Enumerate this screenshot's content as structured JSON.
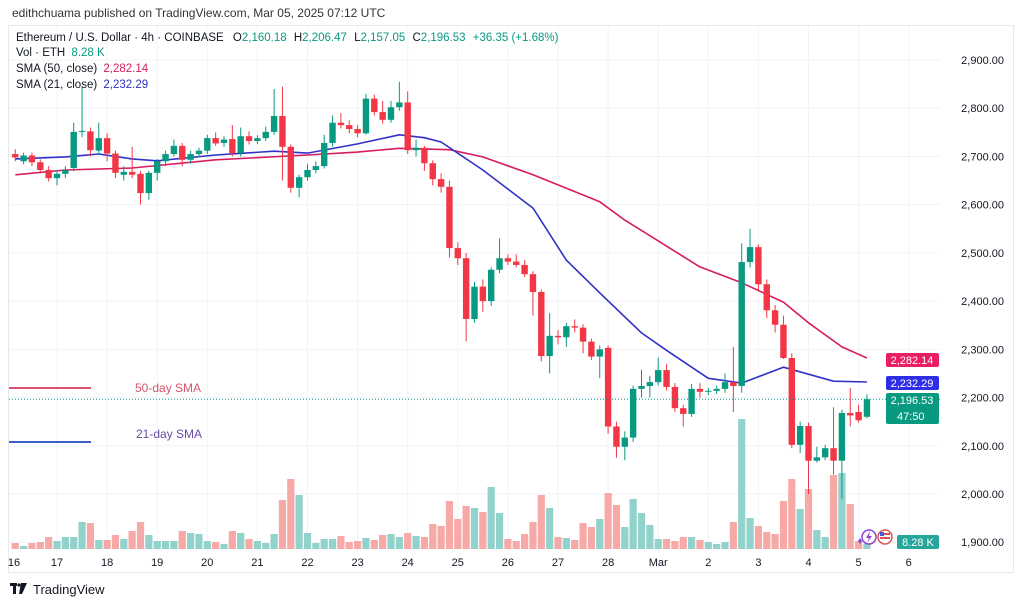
{
  "header": {
    "published": "edithchuama published on TradingView.com, Mar 05, 2025 07:12 UTC"
  },
  "legend": {
    "symbol": "Ethereum / U.S. Dollar · 4h · COINBASE",
    "open_label": "O",
    "open": "2,160.18",
    "high_label": "H",
    "high": "2,206.47",
    "low_label": "L",
    "low": "2,157.05",
    "close_label": "C",
    "close": "2,196.53",
    "change": "+36.35 (+1.68%)",
    "vol_label": "Vol · ETH",
    "vol": "8.28 K",
    "sma50_label": "SMA (50, close)",
    "sma50": "2,282.14",
    "sma21_label": "SMA (21, close)",
    "sma21": "2,232.29"
  },
  "annotations": {
    "sma50_text": "50-day SMA",
    "sma21_text": "21-day SMA"
  },
  "badges": {
    "sma50": "2,282.14",
    "sma21": "2,232.29",
    "price": "2,196.53",
    "countdown": "47:50",
    "volume": "8.28 K"
  },
  "footer": {
    "brand": "TradingView",
    "brand_mark": "TV"
  },
  "colors": {
    "up": "#089981",
    "down": "#f23645",
    "up_volume": "#92d2cc",
    "down_volume": "#f7a9a7",
    "sma50": "#d81b60",
    "sma21": "#3131c9",
    "annotation50": "#d9536f",
    "annotation21": "#6a4ca3",
    "grid": "#f0f3fa"
  },
  "icons": [
    "lightning-icon",
    "us-flag-icon"
  ],
  "chart_data": {
    "type": "candlestick",
    "symbol": "ETH/USD",
    "interval": "4h",
    "ylim": [
      1900,
      2950
    ],
    "yticks": [
      "1,900.00",
      "2,000.00",
      "2,100.00",
      "2,200.00",
      "2,300.00",
      "2,400.00",
      "2,500.00",
      "2,600.00",
      "2,700.00",
      "2,800.00",
      "2,900.00"
    ],
    "ytick_values": [
      1900,
      2000,
      2100,
      2200,
      2300,
      2400,
      2500,
      2600,
      2700,
      2800,
      2900
    ],
    "xticks": [
      {
        "label": "16",
        "t": "2025-02-16T00:00"
      },
      {
        "label": "17",
        "t": "2025-02-17T00:00"
      },
      {
        "label": "18",
        "t": "2025-02-18T00:00"
      },
      {
        "label": "19",
        "t": "2025-02-19T00:00"
      },
      {
        "label": "20",
        "t": "2025-02-20T00:00"
      },
      {
        "label": "21",
        "t": "2025-02-21T00:00"
      },
      {
        "label": "22",
        "t": "2025-02-22T00:00"
      },
      {
        "label": "23",
        "t": "2025-02-23T00:00"
      },
      {
        "label": "24",
        "t": "2025-02-24T00:00"
      },
      {
        "label": "25",
        "t": "2025-02-25T00:00"
      },
      {
        "label": "26",
        "t": "2025-02-26T00:00"
      },
      {
        "label": "27",
        "t": "2025-02-27T00:00"
      },
      {
        "label": "28",
        "t": "2025-02-28T00:00"
      },
      {
        "label": "Mar",
        "t": "2025-03-01T00:00"
      },
      {
        "label": "2",
        "t": "2025-03-02T00:00"
      },
      {
        "label": "3",
        "t": "2025-03-03T00:00"
      },
      {
        "label": "4",
        "t": "2025-03-04T00:00"
      },
      {
        "label": "5",
        "t": "2025-03-05T00:00"
      },
      {
        "label": "6",
        "t": "2025-03-06T00:00"
      }
    ],
    "grid": true,
    "volume_unit": "K ETH",
    "columns": [
      "t",
      "open",
      "high",
      "low",
      "close",
      "volume"
    ],
    "candles": [
      [
        "2025-02-16T04:00",
        2705,
        2715,
        2690,
        2698,
        9
      ],
      [
        "2025-02-16T08:00",
        2690,
        2708,
        2684,
        2702,
        4.5
      ],
      [
        "2025-02-16T12:00",
        2702,
        2708,
        2680,
        2688,
        9
      ],
      [
        "2025-02-16T16:00",
        2688,
        2694,
        2665,
        2672,
        10.5
      ],
      [
        "2025-02-16T20:00",
        2672,
        2680,
        2648,
        2655,
        18
      ],
      [
        "2025-02-17T00:00",
        2655,
        2672,
        2640,
        2664,
        12
      ],
      [
        "2025-02-17T04:00",
        2664,
        2680,
        2655,
        2672,
        18
      ],
      [
        "2025-02-17T08:00",
        2676,
        2770,
        2670,
        2751,
        18
      ],
      [
        "2025-02-17T12:00",
        2751,
        2845,
        2740,
        2753,
        40.5
      ],
      [
        "2025-02-17T16:00",
        2752,
        2760,
        2700,
        2713,
        39
      ],
      [
        "2025-02-17T20:00",
        2712,
        2770,
        2705,
        2738,
        13.5
      ],
      [
        "2025-02-18T00:00",
        2738,
        2748,
        2690,
        2706,
        13.5
      ],
      [
        "2025-02-18T04:00",
        2706,
        2712,
        2655,
        2666,
        21
      ],
      [
        "2025-02-18T08:00",
        2662,
        2680,
        2650,
        2668,
        15
      ],
      [
        "2025-02-18T12:00",
        2668,
        2720,
        2655,
        2662,
        27
      ],
      [
        "2025-02-18T16:00",
        2664,
        2670,
        2600,
        2624,
        40.5
      ],
      [
        "2025-02-18T20:00",
        2624,
        2670,
        2610,
        2666,
        21
      ],
      [
        "2025-02-19T00:00",
        2666,
        2695,
        2650,
        2690,
        12
      ],
      [
        "2025-02-19T04:00",
        2690,
        2712,
        2680,
        2705,
        12
      ],
      [
        "2025-02-19T08:00",
        2705,
        2735,
        2700,
        2722,
        12
      ],
      [
        "2025-02-19T12:00",
        2722,
        2728,
        2680,
        2693,
        27
      ],
      [
        "2025-02-19T16:00",
        2693,
        2712,
        2685,
        2705,
        24
      ],
      [
        "2025-02-19T20:00",
        2705,
        2718,
        2698,
        2712,
        22.5
      ],
      [
        "2025-02-20T00:00",
        2712,
        2745,
        2705,
        2738,
        12
      ],
      [
        "2025-02-20T04:00",
        2738,
        2750,
        2722,
        2727,
        10.5
      ],
      [
        "2025-02-20T08:00",
        2728,
        2742,
        2720,
        2735,
        7.5
      ],
      [
        "2025-02-20T12:00",
        2736,
        2765,
        2700,
        2707,
        27
      ],
      [
        "2025-02-20T16:00",
        2707,
        2760,
        2700,
        2742,
        24
      ],
      [
        "2025-02-20T20:00",
        2742,
        2752,
        2725,
        2732,
        15
      ],
      [
        "2025-02-21T00:00",
        2732,
        2744,
        2726,
        2738,
        12
      ],
      [
        "2025-02-21T04:00",
        2738,
        2762,
        2732,
        2751,
        9
      ],
      [
        "2025-02-21T08:00",
        2751,
        2840,
        2745,
        2784,
        22.5
      ],
      [
        "2025-02-21T12:00",
        2784,
        2845,
        2650,
        2720,
        73.5
      ],
      [
        "2025-02-21T16:00",
        2720,
        2725,
        2625,
        2635,
        105
      ],
      [
        "2025-02-21T20:00",
        2635,
        2662,
        2615,
        2657,
        81
      ],
      [
        "2025-02-22T00:00",
        2657,
        2685,
        2650,
        2672,
        24
      ],
      [
        "2025-02-22T04:00",
        2672,
        2690,
        2665,
        2680,
        9
      ],
      [
        "2025-02-22T08:00",
        2680,
        2745,
        2675,
        2728,
        15
      ],
      [
        "2025-02-22T12:00",
        2728,
        2785,
        2720,
        2770,
        15
      ],
      [
        "2025-02-22T16:00",
        2770,
        2790,
        2758,
        2765,
        19.5
      ],
      [
        "2025-02-22T20:00",
        2765,
        2775,
        2748,
        2757,
        10.5
      ],
      [
        "2025-02-23T00:00",
        2757,
        2765,
        2740,
        2748,
        12
      ],
      [
        "2025-02-23T04:00",
        2748,
        2830,
        2745,
        2820,
        16.5
      ],
      [
        "2025-02-23T08:00",
        2820,
        2828,
        2785,
        2792,
        13.5
      ],
      [
        "2025-02-23T12:00",
        2792,
        2815,
        2768,
        2776,
        21
      ],
      [
        "2025-02-23T16:00",
        2776,
        2815,
        2770,
        2802,
        22.5
      ],
      [
        "2025-02-23T20:00",
        2802,
        2855,
        2795,
        2812,
        18
      ],
      [
        "2025-02-24T00:00",
        2812,
        2835,
        2705,
        2713,
        24
      ],
      [
        "2025-02-24T04:00",
        2713,
        2735,
        2700,
        2718,
        19.5
      ],
      [
        "2025-02-24T08:00",
        2718,
        2722,
        2670,
        2686,
        18
      ],
      [
        "2025-02-24T12:00",
        2686,
        2692,
        2640,
        2653,
        37.5
      ],
      [
        "2025-02-24T16:00",
        2653,
        2665,
        2625,
        2637,
        34.5
      ],
      [
        "2025-02-24T20:00",
        2637,
        2650,
        2490,
        2510,
        72
      ],
      [
        "2025-02-25T00:00",
        2510,
        2522,
        2475,
        2489,
        45
      ],
      [
        "2025-02-25T04:00",
        2489,
        2500,
        2317,
        2363,
        64.5
      ],
      [
        "2025-02-25T08:00",
        2363,
        2440,
        2355,
        2430,
        61.5
      ],
      [
        "2025-02-25T12:00",
        2430,
        2445,
        2378,
        2400,
        55.5
      ],
      [
        "2025-02-25T16:00",
        2400,
        2470,
        2390,
        2465,
        93
      ],
      [
        "2025-02-25T20:00",
        2465,
        2530,
        2458,
        2489,
        54
      ],
      [
        "2025-02-26T00:00",
        2489,
        2497,
        2475,
        2482,
        15
      ],
      [
        "2025-02-26T04:00",
        2482,
        2497,
        2470,
        2475,
        12
      ],
      [
        "2025-02-26T08:00",
        2475,
        2485,
        2450,
        2456,
        22.5
      ],
      [
        "2025-02-26T12:00",
        2456,
        2462,
        2370,
        2419,
        40.5
      ],
      [
        "2025-02-26T16:00",
        2419,
        2424,
        2275,
        2286,
        81
      ],
      [
        "2025-02-26T20:00",
        2286,
        2375,
        2250,
        2328,
        61.5
      ],
      [
        "2025-02-27T00:00",
        2328,
        2340,
        2310,
        2325,
        18
      ],
      [
        "2025-02-27T04:00",
        2325,
        2355,
        2305,
        2348,
        16.5
      ],
      [
        "2025-02-27T08:00",
        2348,
        2362,
        2335,
        2345,
        13.5
      ],
      [
        "2025-02-27T12:00",
        2345,
        2352,
        2292,
        2316,
        39
      ],
      [
        "2025-02-27T16:00",
        2316,
        2322,
        2278,
        2285,
        33
      ],
      [
        "2025-02-27T20:00",
        2285,
        2308,
        2240,
        2300,
        45
      ],
      [
        "2025-02-28T00:00",
        2303,
        2308,
        2125,
        2140,
        84
      ],
      [
        "2025-02-28T04:00",
        2140,
        2150,
        2075,
        2098,
        66
      ],
      [
        "2025-02-28T08:00",
        2098,
        2130,
        2070,
        2117,
        33
      ],
      [
        "2025-02-28T12:00",
        2117,
        2225,
        2108,
        2218,
        75
      ],
      [
        "2025-02-28T16:00",
        2218,
        2258,
        2200,
        2224,
        54
      ],
      [
        "2025-02-28T20:00",
        2224,
        2245,
        2200,
        2232,
        36
      ],
      [
        "2025-03-01T00:00",
        2232,
        2283,
        2225,
        2257,
        15
      ],
      [
        "2025-03-01T04:00",
        2257,
        2270,
        2215,
        2222,
        15
      ],
      [
        "2025-03-01T08:00",
        2222,
        2230,
        2170,
        2178,
        12
      ],
      [
        "2025-03-01T12:00",
        2178,
        2185,
        2140,
        2166,
        18
      ],
      [
        "2025-03-01T16:00",
        2166,
        2228,
        2160,
        2218,
        18
      ],
      [
        "2025-03-01T20:00",
        2218,
        2230,
        2200,
        2212,
        13.5
      ],
      [
        "2025-03-02T00:00",
        2212,
        2220,
        2205,
        2214,
        10.5
      ],
      [
        "2025-03-02T04:00",
        2214,
        2225,
        2208,
        2218,
        7.5
      ],
      [
        "2025-03-02T08:00",
        2218,
        2250,
        2210,
        2232,
        10.5
      ],
      [
        "2025-03-02T12:00",
        2232,
        2305,
        2170,
        2224,
        40.5
      ],
      [
        "2025-03-02T16:00",
        2224,
        2520,
        2210,
        2481,
        195
      ],
      [
        "2025-03-02T20:00",
        2481,
        2550,
        2470,
        2512,
        46.5
      ],
      [
        "2025-03-03T00:00",
        2512,
        2518,
        2420,
        2435,
        34.5
      ],
      [
        "2025-03-03T04:00",
        2435,
        2445,
        2365,
        2381,
        25.5
      ],
      [
        "2025-03-03T08:00",
        2381,
        2392,
        2335,
        2351,
        22.5
      ],
      [
        "2025-03-03T12:00",
        2351,
        2370,
        2280,
        2282,
        72
      ],
      [
        "2025-03-03T16:00",
        2282,
        2292,
        2095,
        2102,
        105
      ],
      [
        "2025-03-03T20:00",
        2102,
        2150,
        2085,
        2141,
        60
      ],
      [
        "2025-03-04T00:00",
        2141,
        2148,
        2000,
        2069,
        90
      ],
      [
        "2025-03-04T04:00",
        2069,
        2098,
        2065,
        2076,
        28.5
      ],
      [
        "2025-03-04T08:00",
        2076,
        2102,
        2070,
        2095,
        18
      ],
      [
        "2025-03-04T12:00",
        2095,
        2180,
        2040,
        2069,
        111
      ],
      [
        "2025-03-04T16:00",
        2069,
        2175,
        1990,
        2168,
        114
      ],
      [
        "2025-03-04T20:00",
        2168,
        2220,
        2140,
        2163,
        67.5
      ],
      [
        "2025-03-05T00:00",
        2170,
        2185,
        2148,
        2153,
        12
      ],
      [
        "2025-03-05T04:00",
        2160.18,
        2206.47,
        2157.05,
        2196.53,
        8.28
      ]
    ],
    "sma50": [
      [
        "2025-02-16T04:00",
        2662
      ],
      [
        "2025-02-17T04:00",
        2672
      ],
      [
        "2025-02-18T12:00",
        2676
      ],
      [
        "2025-02-20T04:00",
        2693
      ],
      [
        "2025-02-22T00:00",
        2703
      ],
      [
        "2025-02-23T00:00",
        2709
      ],
      [
        "2025-02-23T20:00",
        2717
      ],
      [
        "2025-02-24T20:00",
        2714
      ],
      [
        "2025-02-25T12:00",
        2699
      ],
      [
        "2025-02-26T12:00",
        2662
      ],
      [
        "2025-02-27T20:00",
        2606
      ],
      [
        "2025-02-28T08:00",
        2568
      ],
      [
        "2025-03-01T20:00",
        2471
      ],
      [
        "2025-03-02T16:00",
        2438
      ],
      [
        "2025-03-03T12:00",
        2398
      ],
      [
        "2025-03-04T00:00",
        2355
      ],
      [
        "2025-03-04T16:00",
        2305
      ],
      [
        "2025-03-05T04:00",
        2282.14
      ]
    ],
    "sma21": [
      [
        "2025-02-16T04:00",
        2695
      ],
      [
        "2025-02-17T04:00",
        2699
      ],
      [
        "2025-02-17T20:00",
        2705
      ],
      [
        "2025-02-18T12:00",
        2695
      ],
      [
        "2025-02-19T00:00",
        2691
      ],
      [
        "2025-02-20T04:00",
        2703
      ],
      [
        "2025-02-21T08:00",
        2711
      ],
      [
        "2025-02-22T00:00",
        2707
      ],
      [
        "2025-02-23T00:00",
        2726
      ],
      [
        "2025-02-23T20:00",
        2745
      ],
      [
        "2025-02-24T08:00",
        2739
      ],
      [
        "2025-02-24T16:00",
        2730
      ],
      [
        "2025-02-25T12:00",
        2672
      ],
      [
        "2025-02-26T12:00",
        2593
      ],
      [
        "2025-02-27T04:00",
        2485
      ],
      [
        "2025-02-27T20:00",
        2417
      ],
      [
        "2025-02-28T16:00",
        2334
      ],
      [
        "2025-03-01T04:00",
        2298
      ],
      [
        "2025-03-02T00:00",
        2240
      ],
      [
        "2025-03-02T16:00",
        2230
      ],
      [
        "2025-03-03T12:00",
        2263
      ],
      [
        "2025-03-04T12:00",
        2234
      ],
      [
        "2025-03-05T04:00",
        2232.29
      ]
    ],
    "last_price": 2196.53
  }
}
